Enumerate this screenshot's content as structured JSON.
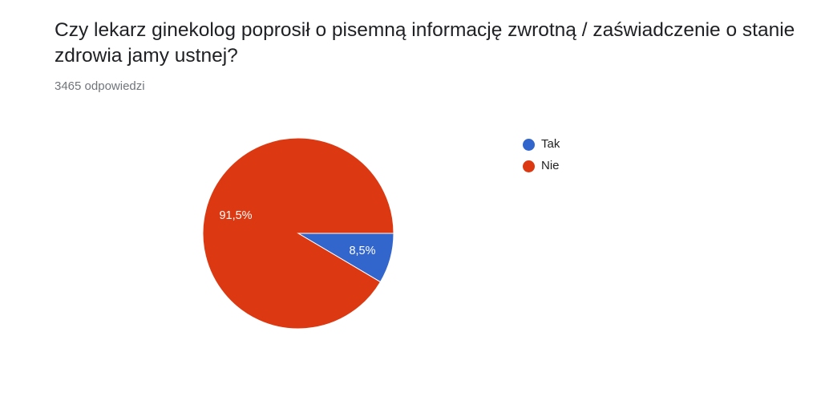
{
  "question": {
    "title": "Czy lekarz ginekolog poprosił o pisemną informację zwrotną / zaświadczenie o stanie zdrowia jamy ustnej?",
    "response_count": "3465 odpowiedzi"
  },
  "chart_data": {
    "type": "pie",
    "categories": [
      "Tak",
      "Nie"
    ],
    "values": [
      8.5,
      91.5
    ],
    "data_labels": [
      "8,5%",
      "91,5%"
    ],
    "colors": [
      "#3366cc",
      "#dc3912"
    ],
    "legend_position": "right",
    "start_angle_deg": 90,
    "direction": "clockwise"
  }
}
